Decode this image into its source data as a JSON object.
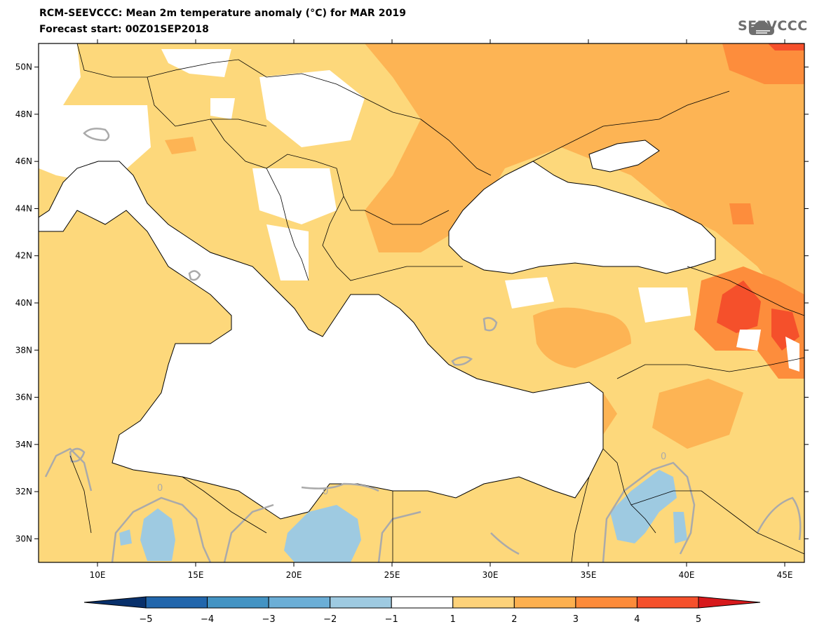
{
  "title": {
    "line1": "RCM-SEEVCCC: Mean 2m temperature anomaly (°C) for MAR 2019",
    "line2": "Forecast start: 00Z01SEP2018"
  },
  "logo": {
    "text": "SEEVCCC",
    "icon": "cloud-logo-icon"
  },
  "map": {
    "lon_range": [
      7,
      46
    ],
    "lat_range": [
      29,
      51
    ],
    "lat_ticks": [
      {
        "value": 50,
        "label": "50N"
      },
      {
        "value": 48,
        "label": "48N"
      },
      {
        "value": 46,
        "label": "46N"
      },
      {
        "value": 44,
        "label": "44N"
      },
      {
        "value": 42,
        "label": "42N"
      },
      {
        "value": 40,
        "label": "40N"
      },
      {
        "value": 38,
        "label": "38N"
      },
      {
        "value": 36,
        "label": "36N"
      },
      {
        "value": 34,
        "label": "34N"
      },
      {
        "value": 32,
        "label": "32N"
      },
      {
        "value": 30,
        "label": "30N"
      }
    ],
    "lon_ticks": [
      {
        "value": 10,
        "label": "10E"
      },
      {
        "value": 15,
        "label": "15E"
      },
      {
        "value": 20,
        "label": "20E"
      },
      {
        "value": 25,
        "label": "25E"
      },
      {
        "value": 30,
        "label": "30E"
      },
      {
        "value": 35,
        "label": "35E"
      },
      {
        "value": 40,
        "label": "40E"
      },
      {
        "value": 45,
        "label": "45E"
      }
    ],
    "contour_label": "0"
  },
  "colorbar": {
    "labels": [
      "-5",
      "-4",
      "-3",
      "-2",
      "-1",
      "1",
      "2",
      "3",
      "4",
      "5"
    ],
    "colors": [
      "#08306b",
      "#2166ac",
      "#4393c3",
      "#6baed6",
      "#9ecae1",
      "#ffffff",
      "#fdd27a",
      "#fdb04f",
      "#fd8b3a",
      "#f5502b",
      "#d7191c"
    ]
  },
  "colors": {
    "anomaly_1_2": "#fdd87b",
    "anomaly_2_3": "#fdb454",
    "anomaly_3_4": "#fd8d3c",
    "anomaly_4_5": "#f5502b",
    "anomaly_neg1_neg2": "#9ecae1",
    "contour": "#aaaaaa",
    "border": "#000000"
  }
}
